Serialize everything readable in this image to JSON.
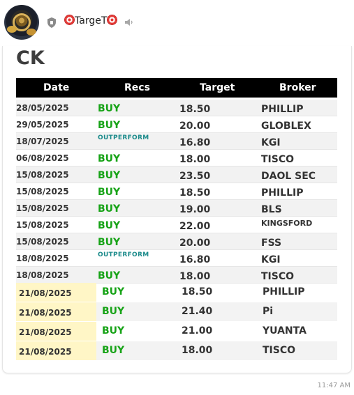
{
  "channel": {
    "name": "TargeT",
    "avatar_icon": "avatar-image",
    "verified_icon": "shield-icon",
    "mute_icon": "speaker-muted-icon"
  },
  "message": {
    "title": "CK",
    "columns": [
      "Date",
      "Recs",
      "Target",
      "Broker"
    ],
    "rows": [
      {
        "date": "28/05/2025",
        "rec": "BUY",
        "target": "18.50",
        "broker": "PHILLIP"
      },
      {
        "date": "29/05/2025",
        "rec": "BUY",
        "target": "20.00",
        "broker": "GLOBLEX"
      },
      {
        "date": "18/07/2025",
        "rec": "OUTPERFORM",
        "target": "16.80",
        "broker": "KGI"
      },
      {
        "date": "06/08/2025",
        "rec": "BUY",
        "target": "18.00",
        "broker": "TISCO"
      },
      {
        "date": "15/08/2025",
        "rec": "BUY",
        "target": "23.50",
        "broker": "DAOL SEC"
      },
      {
        "date": "15/08/2025",
        "rec": "BUY",
        "target": "18.50",
        "broker": "PHILLIP"
      },
      {
        "date": "15/08/2025",
        "rec": "BUY",
        "target": "19.00",
        "broker": "BLS"
      },
      {
        "date": "15/08/2025",
        "rec": "BUY",
        "target": "22.00",
        "broker": "KINGSFORD"
      },
      {
        "date": "15/08/2025",
        "rec": "BUY",
        "target": "20.00",
        "broker": "FSS"
      },
      {
        "date": "18/08/2025",
        "rec": "OUTPERFORM",
        "target": "16.80",
        "broker": "KGI"
      },
      {
        "date": "18/08/2025",
        "rec": "BUY",
        "target": "18.00",
        "broker": "TISCO"
      }
    ],
    "highlight_rows": [
      {
        "date": "21/08/2025",
        "rec": "BUY",
        "target": "18.50",
        "broker": "PHILLIP"
      },
      {
        "date": "21/08/2025",
        "rec": "BUY",
        "target": "21.40",
        "broker": "Pi"
      },
      {
        "date": "21/08/2025",
        "rec": "BUY",
        "target": "21.00",
        "broker": "YUANTA"
      },
      {
        "date": "21/08/2025",
        "rec": "BUY",
        "target": "18.00",
        "broker": "TISCO"
      }
    ],
    "time": "11:47 AM"
  },
  "colors": {
    "buy": "#17a317",
    "outperform": "#1a8a8a",
    "highlight": "#fff6c6",
    "header_bg": "#000000"
  }
}
